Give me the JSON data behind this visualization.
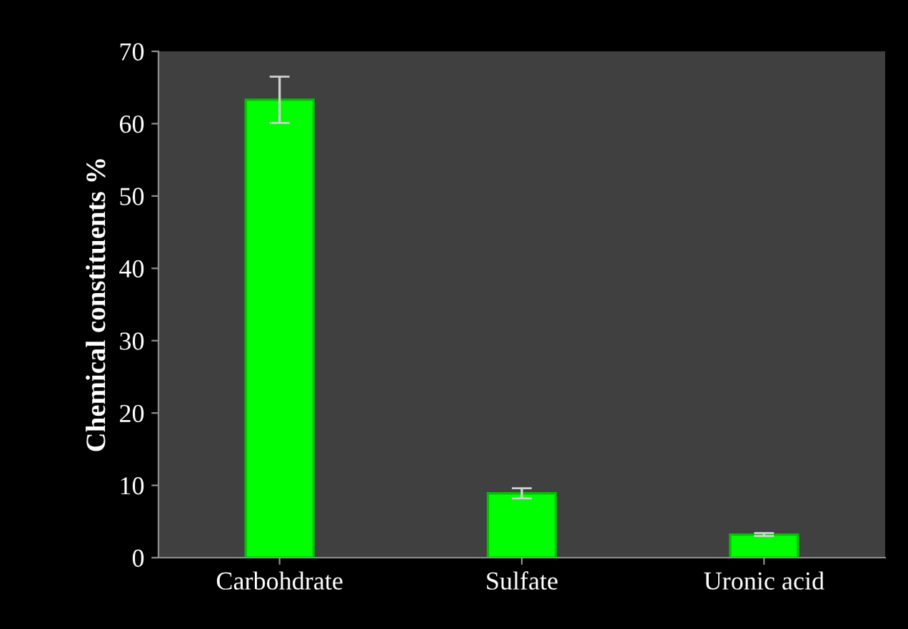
{
  "chart_data": {
    "type": "bar",
    "ylabel": "Chemical constituents %",
    "categories": [
      "Carbohdrate",
      "Sulfate",
      "Uronic acid"
    ],
    "values": [
      63.3,
      8.9,
      3.2
    ],
    "errors": [
      3.2,
      0.7,
      0.2
    ],
    "color": "#00ff00",
    "ylim": [
      0,
      70
    ],
    "yticks": [
      0,
      10,
      20,
      30,
      40,
      50,
      60,
      70
    ],
    "grid": false,
    "legend": false
  }
}
